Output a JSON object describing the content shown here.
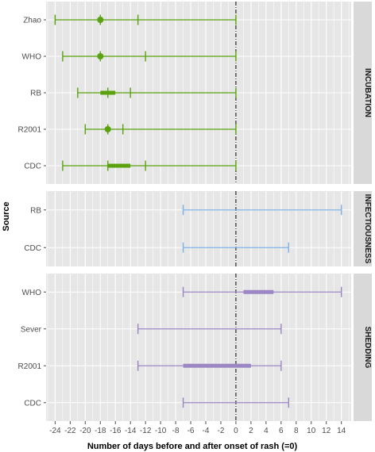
{
  "chart_data": {
    "type": "interval",
    "xlabel": "Number of days before and after onset of rash (=0)",
    "ylabel": "Source",
    "xlim": [
      -25.2,
      15.3
    ],
    "x_ticks": [
      -24,
      -22,
      -20,
      -18,
      -16,
      -14,
      -12,
      -10,
      -8,
      -6,
      -4,
      -2,
      0,
      2,
      4,
      6,
      8,
      10,
      12,
      14
    ],
    "reference_line_x": 0,
    "grid": true,
    "panels": [
      {
        "label": "INCUBATION",
        "color": "#5aa30e",
        "rows": [
          {
            "source": "Zhao",
            "min": -24,
            "max": 0,
            "inner_min": -18,
            "inner_max": -13,
            "point": -18
          },
          {
            "source": "WHO",
            "min": -23,
            "max": 0,
            "inner_min": -18,
            "inner_max": -12,
            "point": -18
          },
          {
            "source": "RB",
            "min": -21,
            "max": 0,
            "inner_min": -17,
            "inner_max": -14,
            "box_min": -18,
            "box_max": -16
          },
          {
            "source": "R2001",
            "min": -20,
            "max": 0,
            "inner_min": -17,
            "inner_max": -15,
            "point": -17
          },
          {
            "source": "CDC",
            "min": -23,
            "max": 0,
            "inner_min": -17,
            "inner_max": -12,
            "box_min": -17,
            "box_max": -14
          }
        ]
      },
      {
        "label": "INFECTIOUSNESS",
        "color": "#7fb3e8",
        "rows": [
          {
            "source": "RB",
            "min": -7,
            "max": 14
          },
          {
            "source": "CDC",
            "min": -7,
            "max": 7
          }
        ]
      },
      {
        "label": "SHEDDING",
        "color": "#9b87c4",
        "rows": [
          {
            "source": "WHO",
            "min": -7,
            "max": 14,
            "box_min": 1,
            "box_max": 5
          },
          {
            "source": "Sever",
            "min": -13,
            "max": 6
          },
          {
            "source": "R2001",
            "min": -13,
            "max": 6,
            "box_min": -7,
            "box_max": 2
          },
          {
            "source": "CDC",
            "min": -7,
            "max": 7
          }
        ]
      }
    ]
  }
}
